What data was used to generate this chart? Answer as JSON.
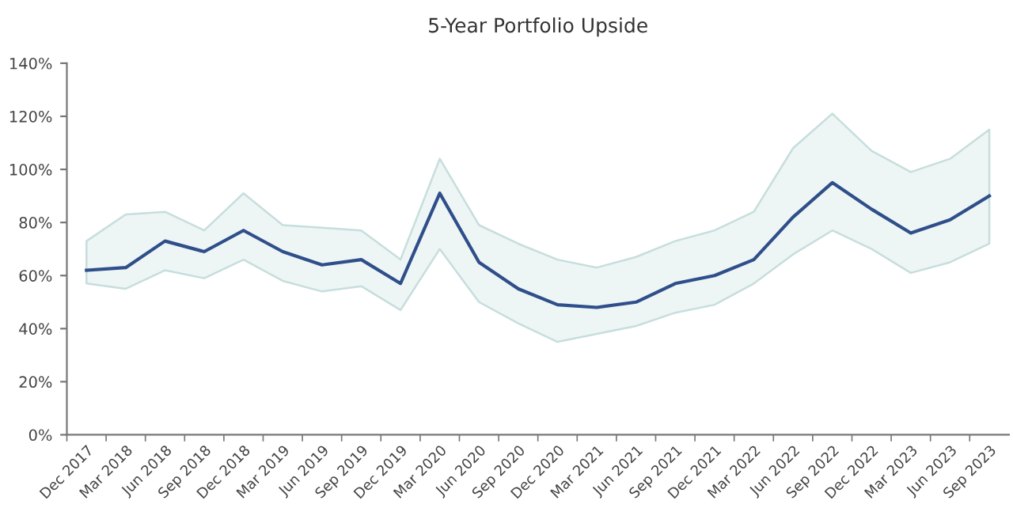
{
  "chart_data": {
    "type": "line",
    "title": "5-Year Portfolio Upside",
    "categories": [
      "Dec 2017",
      "Mar 2018",
      "Jun 2018",
      "Sep 2018",
      "Dec 2018",
      "Mar 2019",
      "Jun 2019",
      "Sep 2019",
      "Dec 2019",
      "Mar 2020",
      "Jun 2020",
      "Sep 2020",
      "Dec 2020",
      "Mar 2021",
      "Jun 2021",
      "Sep 2021",
      "Dec 2021",
      "Mar 2022",
      "Jun 2022",
      "Sep 2022",
      "Dec 2022",
      "Mar 2023",
      "Jun 2023",
      "Sep 2023"
    ],
    "series": [
      {
        "color": "#2f4f8a",
        "values": [
          62,
          63,
          73,
          69,
          77,
          69,
          64,
          66,
          57,
          91,
          65,
          55,
          49,
          48,
          50,
          57,
          60,
          66,
          82,
          95,
          85,
          76,
          81,
          90
        ],
        "upper": [
          73,
          83,
          84,
          77,
          91,
          79,
          78,
          77,
          66,
          104,
          79,
          72,
          66,
          63,
          67,
          73,
          77,
          84,
          108,
          121,
          107,
          99,
          104,
          115
        ],
        "lower": [
          57,
          55,
          62,
          59,
          66,
          58,
          54,
          56,
          47,
          70,
          50,
          42,
          35,
          38,
          41,
          46,
          49,
          57,
          68,
          77,
          70,
          61,
          65,
          72
        ]
      }
    ],
    "ylim": [
      0,
      140
    ],
    "yticks": [
      {
        "value": 0,
        "label": "0%"
      },
      {
        "value": 20,
        "label": "20%"
      },
      {
        "value": 40,
        "label": "40%"
      },
      {
        "value": 60,
        "label": "60%"
      },
      {
        "value": 80,
        "label": "80%"
      },
      {
        "value": 100,
        "label": "100%"
      },
      {
        "value": 120,
        "label": "120%"
      },
      {
        "value": 140,
        "label": "140%"
      }
    ],
    "grid": false,
    "marker": "none",
    "line_style": "solid"
  }
}
